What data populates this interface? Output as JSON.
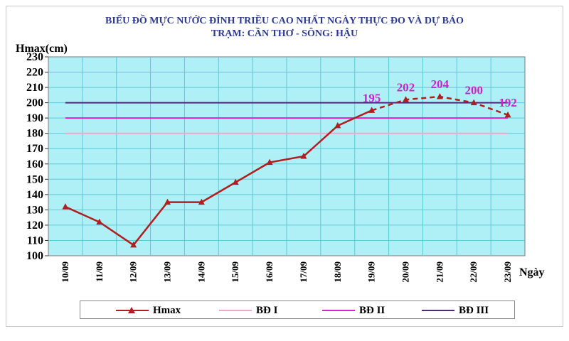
{
  "chart_data": {
    "type": "line",
    "title": "BIỂU ĐỒ MỰC NƯỚC ĐỈNH TRIỀU CAO NHẤT NGÀY THỰC ĐO VÀ DỰ BÁO",
    "subtitle": "TRẠM: CẦN THƠ - SÔNG: HẬU",
    "ylabel": "Hmax(cm)",
    "xlabel": "Ngày",
    "categories": [
      "10/09",
      "11/09",
      "12/09",
      "13/09",
      "14/09",
      "15/09",
      "16/09",
      "17/09",
      "18/09",
      "19/09",
      "20/09",
      "21/09",
      "22/09",
      "23/09"
    ],
    "ylim": [
      100,
      230
    ],
    "yticks": [
      100,
      110,
      120,
      130,
      140,
      150,
      160,
      170,
      180,
      190,
      200,
      210,
      220,
      230
    ],
    "grid": true,
    "legend_position": "bottom",
    "series": [
      {
        "name": "Hmax",
        "color": "#b01e1e",
        "values": [
          132,
          122,
          107,
          135,
          135,
          148,
          161,
          165,
          185,
          195,
          202,
          204,
          200,
          192
        ],
        "observed_count": 10,
        "forecast_style": "dashed"
      },
      {
        "name": "BĐ I",
        "color": "#f4a6c8",
        "values": [
          180,
          180,
          180,
          180,
          180,
          180,
          180,
          180,
          180,
          180,
          180,
          180,
          180,
          180
        ]
      },
      {
        "name": "BĐ II",
        "color": "#e020d0",
        "values": [
          190,
          190,
          190,
          190,
          190,
          190,
          190,
          190,
          190,
          190,
          190,
          190,
          190,
          190
        ]
      },
      {
        "name": "BĐ III",
        "color": "#4a2a7a",
        "values": [
          200,
          200,
          200,
          200,
          200,
          200,
          200,
          200,
          200,
          200,
          200,
          200,
          200,
          200
        ]
      }
    ],
    "data_labels": [
      {
        "index": 9,
        "text": "195"
      },
      {
        "index": 10,
        "text": "202"
      },
      {
        "index": 11,
        "text": "204"
      },
      {
        "index": 12,
        "text": "200"
      },
      {
        "index": 13,
        "text": "192"
      }
    ]
  }
}
